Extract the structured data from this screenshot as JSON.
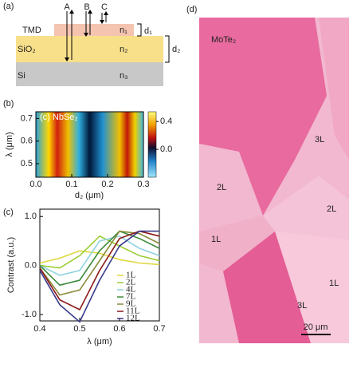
{
  "panel_a": {
    "label": "(a)",
    "layers": [
      "TMD",
      "SiO₂",
      "Si"
    ],
    "indices": [
      "n₁",
      "n₂",
      "n₃"
    ],
    "thicknesses": [
      "d₁",
      "d₂"
    ],
    "rays": [
      "A",
      "B",
      "C"
    ]
  },
  "panel_b": {
    "label": "(b)",
    "inset": "(c) NbSe₂",
    "x_label": "d₂ (μm)",
    "y_label": "λ (μm)",
    "xlim": [
      0,
      0.3
    ],
    "xticks": [
      {
        "value": 0,
        "label": "0.0"
      },
      0.1,
      0.2,
      0.3
    ],
    "ylim": [
      0.44,
      0.73
    ],
    "yticks": [
      0.5,
      0.6,
      0.7
    ],
    "colorbar": {
      "lim": [
        -0.4,
        0.54
      ],
      "ticks": [
        0.4,
        {
          "value": 0,
          "label": "0.0"
        }
      ]
    }
  },
  "panel_c": {
    "type": "line",
    "label": "(c)",
    "x_label": "λ (μm)",
    "y_label": "Contrast (a.u.)",
    "x": [
      0.4,
      0.45,
      0.5,
      0.55,
      0.6,
      0.65,
      0.7
    ],
    "xlim": [
      0.4,
      0.7
    ],
    "xticks": [
      0.4,
      0.5,
      0.6,
      0.7
    ],
    "ylim": [
      -1.13,
      1.15
    ],
    "yticks": [
      {
        "value": 1,
        "label": "1.0"
      },
      {
        "value": 0,
        "label": "0.0"
      },
      {
        "value": -1,
        "label": "-1.0"
      }
    ],
    "series": [
      {
        "name": "1L",
        "color": "#e0d840",
        "values": [
          0.05,
          0.15,
          0.3,
          0.25,
          0.12,
          0.05,
          0.02
        ]
      },
      {
        "name": "2L",
        "color": "#9acd32",
        "values": [
          0,
          -0.05,
          0.2,
          0.6,
          0.4,
          0.2,
          0.1
        ]
      },
      {
        "name": "4L",
        "color": "#8fd3e0",
        "values": [
          0,
          -0.2,
          -0.1,
          0.5,
          0.6,
          0.35,
          0.2
        ]
      },
      {
        "name": "7L",
        "color": "#3d8b3d",
        "values": [
          0,
          -0.4,
          -0.3,
          0.3,
          0.7,
          0.55,
          0.35
        ]
      },
      {
        "name": "9L",
        "color": "#8b8b3a",
        "values": [
          -0.05,
          -0.6,
          -0.5,
          0.1,
          0.7,
          0.65,
          0.45
        ]
      },
      {
        "name": "11L",
        "color": "#8b1a1a",
        "values": [
          -0.05,
          -0.7,
          -0.9,
          -0.1,
          0.55,
          0.7,
          0.6
        ]
      },
      {
        "name": "12L",
        "color": "#3a3a8c",
        "values": [
          -0.1,
          -0.8,
          -1.15,
          -0.3,
          0.4,
          0.7,
          0.7
        ]
      }
    ]
  },
  "panel_d": {
    "label": "(d)",
    "material": "MoTe₂",
    "regions": [
      "3L",
      "2L",
      "2L",
      "1L",
      "1L",
      "3L"
    ],
    "scale_bar": "20 μm"
  }
}
